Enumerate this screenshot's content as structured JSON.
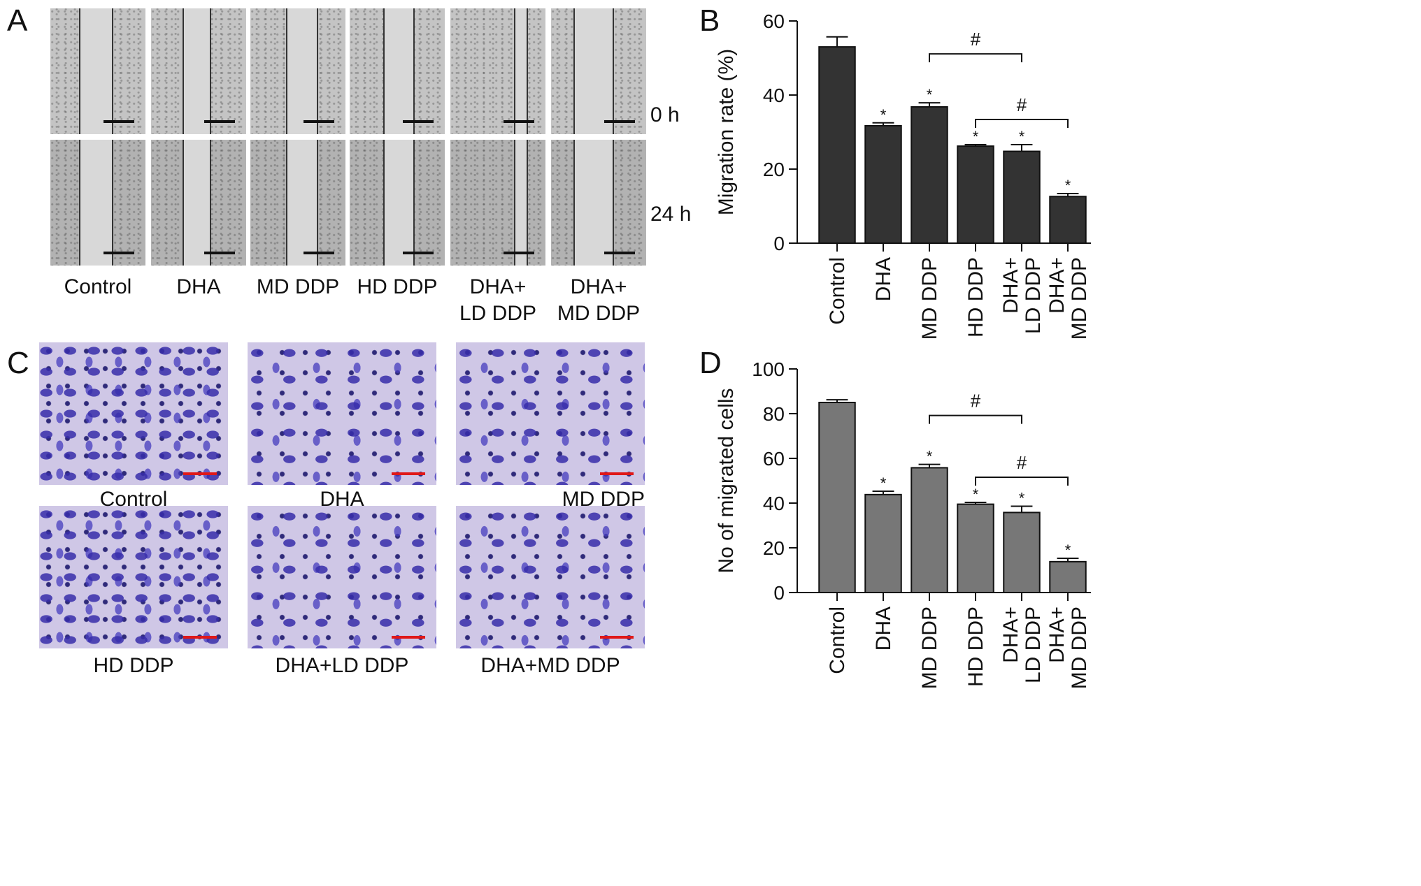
{
  "panels": {
    "a": "A",
    "b": "B",
    "c": "C",
    "d": "D"
  },
  "panel_a": {
    "columns": [
      "Control",
      "DHA",
      "MD DDP",
      "HD DDP",
      "DHA+\nLD DDP",
      "DHA+\nMD DDP"
    ],
    "rows": [
      "0 h",
      "24 h"
    ]
  },
  "panel_c": {
    "captions": [
      "Control",
      "DHA",
      "MD DDP",
      "HD DDP",
      "DHA+LD DDP",
      "DHA+MD DDP"
    ]
  },
  "chart_data": [
    {
      "type": "bar",
      "panel": "B",
      "categories": [
        "Control",
        "DHA",
        "MD DDP",
        "HD DDP",
        "DHA+\nLD DDP",
        "DHA+\nMD DDP"
      ],
      "values": [
        53,
        31.7,
        36.8,
        26.2,
        24.8,
        12.6
      ],
      "errors": [
        2.7,
        0.8,
        1.1,
        0.4,
        1.8,
        0.8
      ],
      "significance": [
        "",
        "*",
        "*",
        "*",
        "*",
        "*"
      ],
      "brackets": [
        {
          "from": 2,
          "to": 4,
          "label": "#"
        },
        {
          "from": 3,
          "to": 5,
          "label": "#"
        }
      ],
      "ylabel": "Migration rate (%)",
      "ylim": [
        0,
        60
      ],
      "yticks": [
        0,
        20,
        40,
        60
      ],
      "bar_color": "#333333"
    },
    {
      "type": "bar",
      "panel": "D",
      "categories": [
        "Control",
        "DHA",
        "MD DDP",
        "HD DDP",
        "DHA+\nLD DDP",
        "DHA+\nMD DDP"
      ],
      "values": [
        85,
        43.8,
        55.8,
        39.5,
        35.8,
        13.8
      ],
      "errors": [
        1.2,
        1.5,
        1.5,
        0.8,
        2.8,
        1.5
      ],
      "significance": [
        "",
        "*",
        "*",
        "*",
        "*",
        "*"
      ],
      "brackets": [
        {
          "from": 2,
          "to": 4,
          "label": "#"
        },
        {
          "from": 3,
          "to": 5,
          "label": "#"
        }
      ],
      "ylabel": "No of migrated cells",
      "ylim": [
        0,
        100
      ],
      "yticks": [
        0,
        20,
        40,
        60,
        80,
        100
      ],
      "bar_color": "#777777"
    }
  ]
}
